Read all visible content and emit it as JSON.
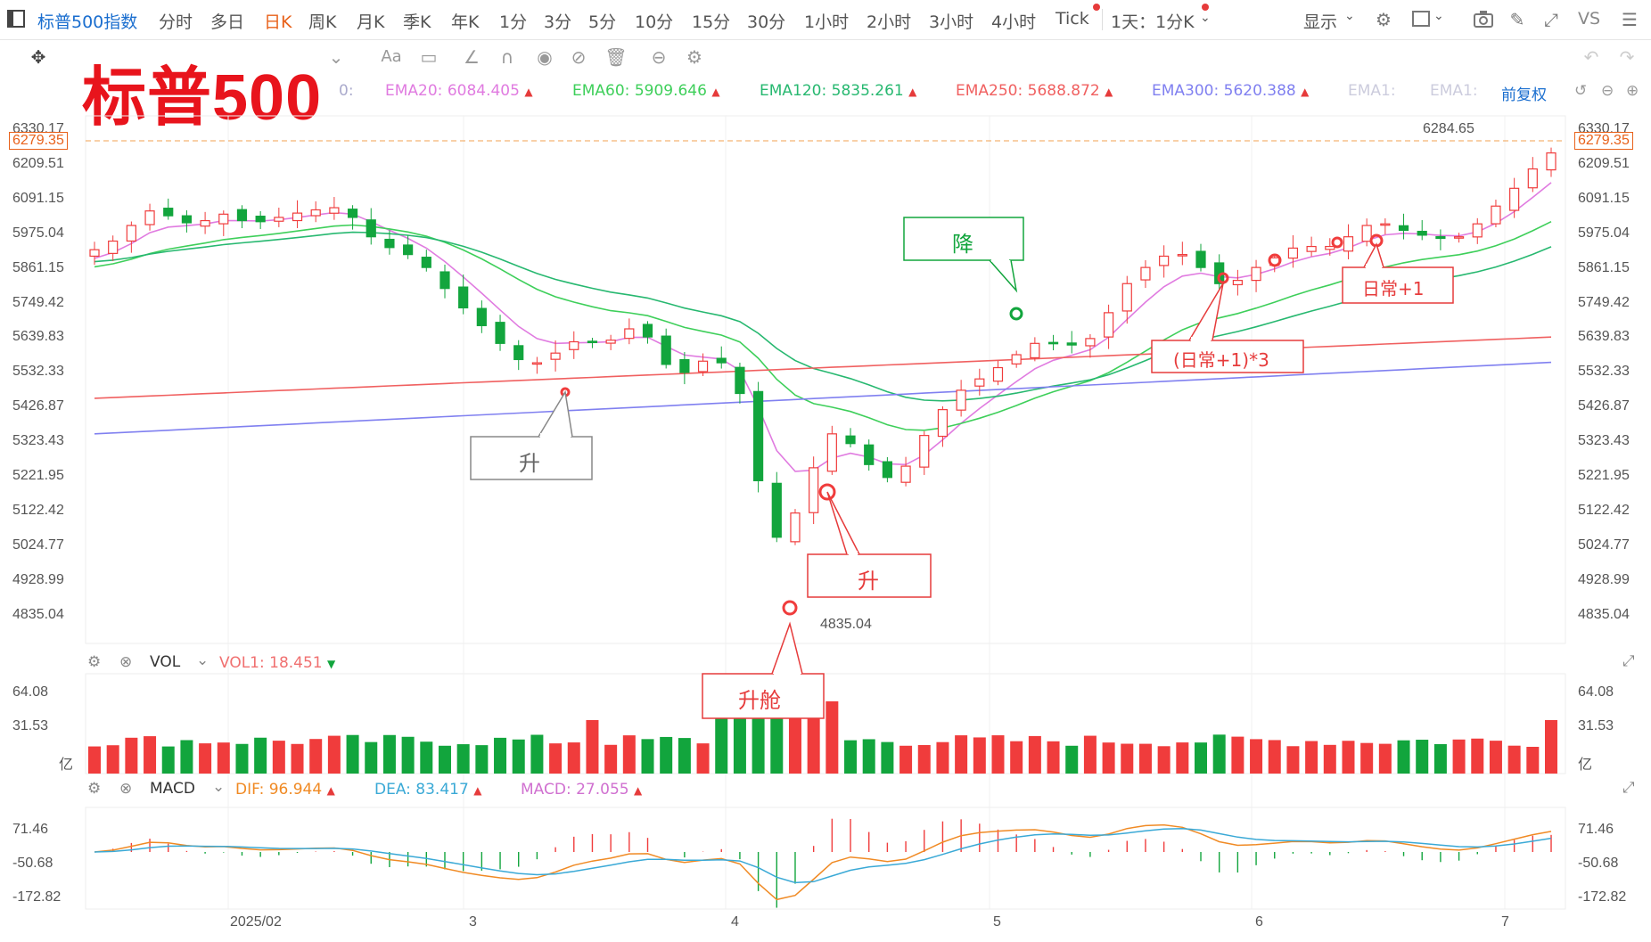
{
  "toolbar": {
    "symbol": "标普500指数",
    "periods": [
      "分时",
      "多日",
      "日K",
      "周K",
      "月K",
      "季K",
      "年K",
      "1分",
      "3分",
      "5分",
      "10分",
      "15分",
      "30分",
      "1小时",
      "2小时",
      "3小时",
      "4小时",
      "Tick",
      "1天：1分K"
    ],
    "active_period": "日K",
    "display_label": "显示",
    "vs_label": "VS"
  },
  "title_overlay": "标普500",
  "ema_legend": {
    "partial": "0:",
    "ema20_label": "EMA20:",
    "ema20_value": "6084.405",
    "ema60_label": "EMA60:",
    "ema60_value": "5909.646",
    "ema120_label": "EMA120:",
    "ema120_value": "5835.261",
    "ema250_label": "EMA250:",
    "ema250_value": "5688.872",
    "ema300_label": "EMA300:",
    "ema300_value": "5620.388",
    "ema1_label": "EMA1:",
    "ema1b_label": "EMA1:",
    "adjust_label": "前复权"
  },
  "colors": {
    "ema20": "#e07be0",
    "ema60": "#3ecf5a",
    "ema120": "#27b870",
    "ema250": "#f06060",
    "ema300": "#8080f0",
    "up": "#f03c3c",
    "down": "#12a53d",
    "accent": "#1a6ecf"
  },
  "price_axis": {
    "labels": [
      "6330.17",
      "6209.51",
      "6091.15",
      "5975.04",
      "5861.15",
      "5749.42",
      "5639.83",
      "5532.33",
      "5426.87",
      "5323.43",
      "5221.95",
      "5122.42",
      "5024.77",
      "4928.99",
      "4835.04"
    ],
    "current_price": "6279.35",
    "high_label": "6284.65",
    "low_label": "4835.04"
  },
  "volume": {
    "title": "VOL",
    "vol1_label": "VOL1:",
    "vol1_value": "18.451",
    "axis": [
      "64.08",
      "31.53",
      "亿"
    ]
  },
  "macd": {
    "title": "MACD",
    "dif_label": "DIF:",
    "dif_value": "96.944",
    "dea_label": "DEA:",
    "dea_value": "83.417",
    "macd_label": "MACD:",
    "macd_value": "27.055",
    "axis": [
      "71.46",
      "-50.68",
      "-172.82"
    ]
  },
  "x_axis": [
    "2025/02",
    "3",
    "4",
    "5",
    "6",
    "7"
  ],
  "annotations": [
    "升",
    "升",
    "升舱",
    "降",
    "(日常+1)*3",
    "日常+1"
  ]
}
